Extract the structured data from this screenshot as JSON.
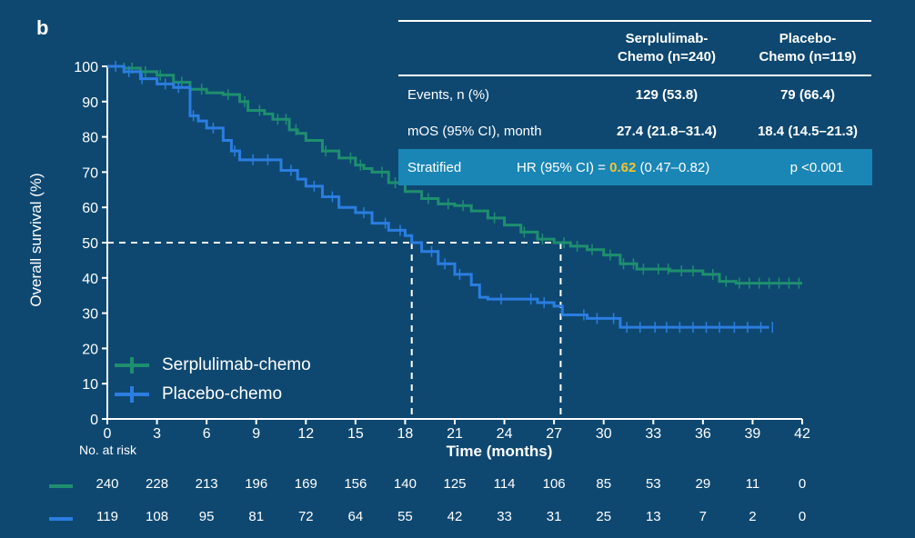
{
  "panel_label": "b",
  "colors": {
    "background": "#0e4871",
    "serplulimab": "#1e8f6e",
    "placebo": "#2b7de0",
    "stratified_bar": "#1a86b5",
    "hr_highlight": "#f4c430",
    "text": "#ffffff"
  },
  "table": {
    "header_serplulimab": [
      "Serplulimab-",
      "Chemo (n=240)"
    ],
    "header_placebo": [
      "Placebo-",
      "Chemo (n=119)"
    ],
    "events_label": "Events, n (%)",
    "events_serplulimab": "129 (53.8)",
    "events_placebo": "79 (66.4)",
    "mos_label": "mOS (95% CI), month",
    "mos_serplulimab": "27.4 (21.8–31.4)",
    "mos_placebo": "18.4 (14.5–21.3)",
    "stratified_label": "Stratified",
    "hr_prefix": "HR (95% CI) = ",
    "hr_value": "0.62",
    "hr_ci": " (0.47–0.82)",
    "p_value": "p <0.001"
  },
  "legend": {
    "serplulimab": "Serplulimab-chemo",
    "placebo": "Placebo-chemo"
  },
  "risk_table": {
    "title": "No. at risk",
    "times": [
      0,
      3,
      6,
      9,
      12,
      15,
      18,
      21,
      24,
      27,
      30,
      33,
      36,
      39,
      42
    ],
    "serplulimab": [
      "240",
      "228",
      "213",
      "196",
      "169",
      "156",
      "140",
      "125",
      "114",
      "106",
      "85",
      "53",
      "29",
      "11",
      "0"
    ],
    "placebo": [
      "119",
      "108",
      "95",
      "81",
      "72",
      "64",
      "55",
      "42",
      "33",
      "31",
      "25",
      "13",
      "7",
      "2",
      "0"
    ]
  },
  "chart_data": {
    "type": "line",
    "xlabel": "Time (months)",
    "ylabel": "Overall survival (%)",
    "xlim": [
      0,
      42
    ],
    "ylim": [
      0,
      100
    ],
    "xticks": [
      0,
      3,
      6,
      9,
      12,
      15,
      18,
      21,
      24,
      27,
      30,
      33,
      36,
      39,
      42
    ],
    "yticks": [
      0,
      10,
      20,
      30,
      40,
      50,
      60,
      70,
      80,
      90,
      100
    ],
    "grid": false,
    "median_reference": {
      "y": 50,
      "x_values": [
        18.4,
        27.4
      ]
    },
    "series": [
      {
        "name": "Serplulimab-chemo",
        "step_points": [
          [
            0,
            100
          ],
          [
            1,
            99.5
          ],
          [
            2,
            98.5
          ],
          [
            3,
            97.5
          ],
          [
            4,
            95.5
          ],
          [
            5,
            93.5
          ],
          [
            6,
            92.5
          ],
          [
            7,
            92
          ],
          [
            8,
            90
          ],
          [
            8.5,
            87.5
          ],
          [
            9.5,
            86.5
          ],
          [
            10,
            85
          ],
          [
            11,
            82
          ],
          [
            11.5,
            81
          ],
          [
            12,
            79
          ],
          [
            13,
            76
          ],
          [
            14,
            74
          ],
          [
            15,
            72
          ],
          [
            15.5,
            71
          ],
          [
            16,
            70
          ],
          [
            17,
            67
          ],
          [
            18,
            64.5
          ],
          [
            19,
            62.5
          ],
          [
            20,
            61
          ],
          [
            21,
            60.5
          ],
          [
            22,
            59
          ],
          [
            23,
            57
          ],
          [
            24,
            55
          ],
          [
            25,
            53
          ],
          [
            26,
            51
          ],
          [
            27,
            50
          ],
          [
            28,
            49
          ],
          [
            29,
            48
          ],
          [
            30,
            46.5
          ],
          [
            31,
            44
          ],
          [
            32,
            42.5
          ],
          [
            33,
            42.5
          ],
          [
            34,
            42
          ],
          [
            35,
            42
          ],
          [
            36,
            41
          ],
          [
            37,
            39
          ],
          [
            38,
            38.5
          ],
          [
            39,
            38.5
          ],
          [
            40,
            38.5
          ],
          [
            41,
            38.5
          ],
          [
            42,
            38.5
          ]
        ],
        "censor_x": [
          1,
          1.5,
          2.3,
          3.2,
          4.5,
          5.7,
          7.3,
          8.3,
          9.2,
          10.3,
          10.8,
          11.4,
          13.2,
          14.7,
          15.3,
          16.6,
          17.4,
          19.4,
          20.6,
          21.5,
          23.4,
          25.2,
          26.3,
          27.6,
          28.4,
          29.3,
          30.4,
          31.2,
          31.8,
          32.4,
          33.3,
          33.9,
          34.7,
          35.4,
          36.6,
          37.4,
          38.2,
          38.8,
          39.4,
          40,
          40.6,
          41.2,
          41.8
        ]
      },
      {
        "name": "Placebo-chemo",
        "step_points": [
          [
            0,
            100
          ],
          [
            1,
            98.5
          ],
          [
            2,
            96.5
          ],
          [
            3,
            95
          ],
          [
            4,
            94
          ],
          [
            5,
            90
          ],
          [
            5,
            86
          ],
          [
            5.5,
            84.5
          ],
          [
            6,
            82.5
          ],
          [
            7,
            79
          ],
          [
            7.5,
            76
          ],
          [
            8,
            73.5
          ],
          [
            9,
            73.5
          ],
          [
            10,
            73.5
          ],
          [
            10.5,
            70.5
          ],
          [
            11.5,
            68
          ],
          [
            12,
            66
          ],
          [
            13,
            63
          ],
          [
            14,
            60
          ],
          [
            15,
            58.5
          ],
          [
            16,
            55.5
          ],
          [
            17,
            53.5
          ],
          [
            18,
            52
          ],
          [
            18.4,
            50
          ],
          [
            19,
            47.5
          ],
          [
            20,
            44
          ],
          [
            21,
            41
          ],
          [
            22,
            38
          ],
          [
            22.5,
            34.5
          ],
          [
            23,
            34
          ],
          [
            24,
            34
          ],
          [
            25,
            34
          ],
          [
            26,
            33
          ],
          [
            27,
            32
          ],
          [
            27.5,
            29.5
          ],
          [
            28,
            29.5
          ],
          [
            29,
            28.5
          ],
          [
            30,
            28.5
          ],
          [
            31,
            26
          ],
          [
            32,
            26
          ],
          [
            33,
            26
          ],
          [
            34,
            26
          ],
          [
            35,
            26
          ],
          [
            36,
            26
          ],
          [
            37,
            26
          ],
          [
            38,
            26
          ],
          [
            39,
            26
          ],
          [
            40,
            26
          ]
        ],
        "censor_x": [
          0.5,
          1.3,
          2.1,
          3.5,
          4.3,
          5.2,
          6.4,
          7.7,
          8.8,
          9.7,
          11.1,
          12.5,
          13.6,
          15.5,
          16.8,
          17.7,
          19.6,
          20.4,
          21.3,
          23.8,
          25.6,
          26.4,
          28.8,
          29.6,
          30.6,
          31.4,
          32.2,
          33.1,
          33.8,
          34.6,
          35.4,
          36.2,
          37,
          37.9,
          38.7,
          39.5,
          40.2
        ]
      }
    ]
  }
}
